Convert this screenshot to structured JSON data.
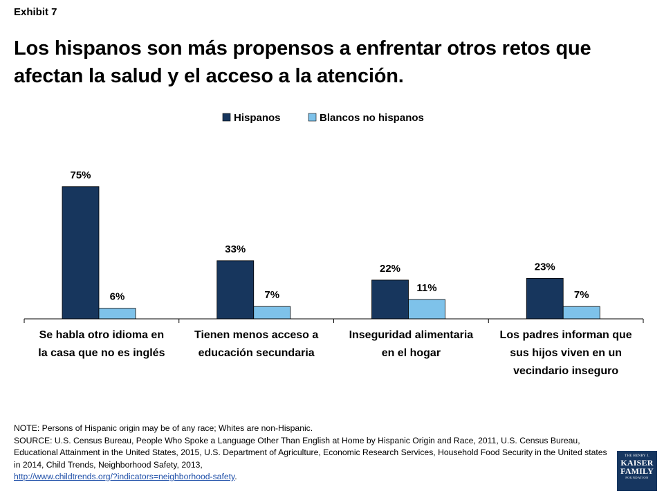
{
  "header": {
    "exhibit": "Exhibit 7",
    "title": "Los hispanos son más propensos a enfrentar otros retos que afectan la salud y el acceso a la atención."
  },
  "colors": {
    "hispanos": "#17365d",
    "blancos": "#7ec2ea",
    "axis": "#000000"
  },
  "chart_data": {
    "type": "bar",
    "categories": [
      [
        "Se habla otro idioma en",
        "la casa que no es inglés"
      ],
      [
        "Tienen menos acceso a",
        "educación secundaria"
      ],
      [
        "Inseguridad alimentaria",
        "en el hogar"
      ],
      [
        "Los padres informan que",
        "sus hijos viven en un",
        "vecindario inseguro"
      ]
    ],
    "series": [
      {
        "name": "Hispanos",
        "values": [
          75,
          33,
          22,
          23
        ],
        "labels": [
          "75%",
          "33%",
          "22%",
          "23%"
        ]
      },
      {
        "name": "Blancos no hispanos",
        "values": [
          6,
          7,
          11,
          7
        ],
        "labels": [
          "6%",
          "7%",
          "11%",
          "7%"
        ]
      }
    ],
    "ylim": [
      0,
      100
    ],
    "legend": "top-center",
    "grid": false
  },
  "notes": {
    "note": "NOTE: Persons of Hispanic origin may be of any race; Whites are non-Hispanic.",
    "source": "SOURCE: U.S. Census Bureau, People Who Spoke a Language Other Than English at Home by Hispanic Origin and Race, 2011, U.S. Census Bureau, Educational Attainment in the United States, 2015, U.S. Department of Agriculture, Economic Research Services, Household Food Security in the United states in 2014, Child Trends, Neighborhood Safety, 2013,",
    "link": "http://www.childtrends.org/?indicators=neighborhood-safety",
    "link_suffix": "."
  },
  "logo": {
    "line1": "THE HENRY J.",
    "line2": "KAISER",
    "line3": "FAMILY",
    "line4": "FOUNDATION"
  }
}
